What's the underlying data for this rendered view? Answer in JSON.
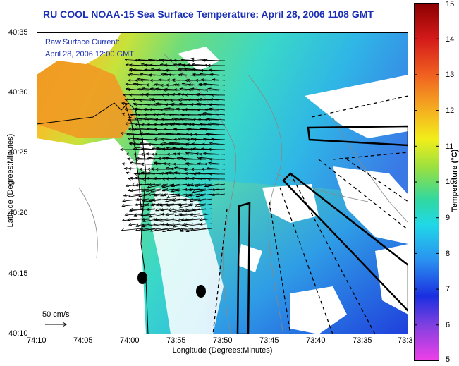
{
  "title": "RU COOL  NOAA-15  Sea Surface Temperature:  April 28, 2006 1108 GMT",
  "legend": {
    "line1": "Raw Surface Current:",
    "line2": "April 28, 2006 12:00 GMT",
    "scale_label": "50 cm/s"
  },
  "axes": {
    "xlabel": "Longitude (Degrees:Minutes)",
    "ylabel": "Latitude (Degrees:Minutes)",
    "xticks": [
      "74:10",
      "74:05",
      "74:00",
      "73:55",
      "73:50",
      "73:45",
      "73:40",
      "73:35",
      "73:3"
    ],
    "yticks": [
      "40:35",
      "40:30",
      "40:25",
      "40:20",
      "40:15",
      "40:10"
    ]
  },
  "colorbar": {
    "title": "Temperature (°C)",
    "ticks": [
      "15",
      "14",
      "13",
      "12",
      "11",
      "10",
      "9",
      "8",
      "7",
      "6",
      "5"
    ],
    "range": [
      5,
      15
    ]
  }
}
